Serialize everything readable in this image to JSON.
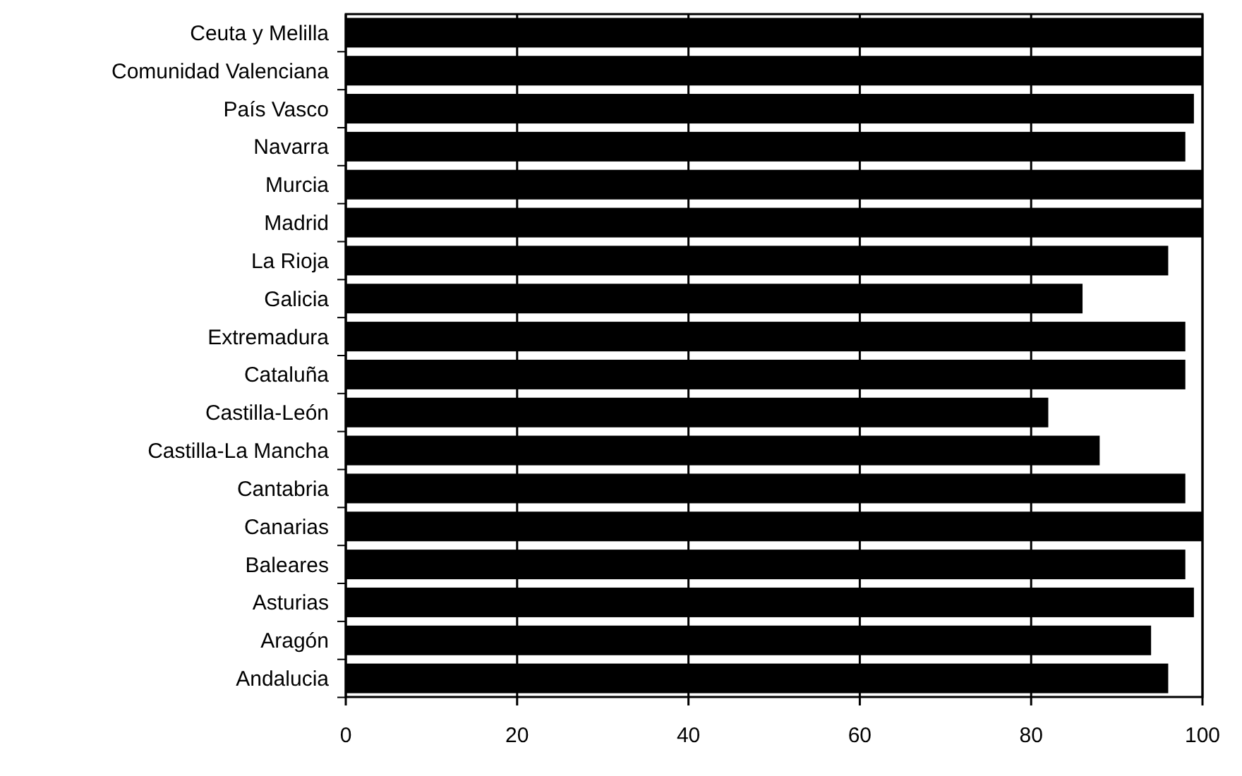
{
  "chart_data": {
    "type": "bar",
    "orientation": "horizontal",
    "categories": [
      "Ceuta y Melilla",
      "Comunidad Valenciana",
      "País Vasco",
      "Navarra",
      "Murcia",
      "Madrid",
      "La Rioja",
      "Galicia",
      "Extremadura",
      "Cataluña",
      "Castilla-León",
      "Castilla-La Mancha",
      "Cantabria",
      "Canarias",
      "Baleares",
      "Asturias",
      "Aragón",
      "Andalucia"
    ],
    "values": [
      100,
      100,
      99,
      98,
      100,
      100,
      96,
      86,
      98,
      98,
      82,
      88,
      98,
      100,
      98,
      99,
      94,
      96
    ],
    "color": "#000000",
    "xlim": [
      0,
      100
    ],
    "xticks": [
      0,
      20,
      40,
      60,
      80,
      100
    ],
    "grid": "x"
  }
}
